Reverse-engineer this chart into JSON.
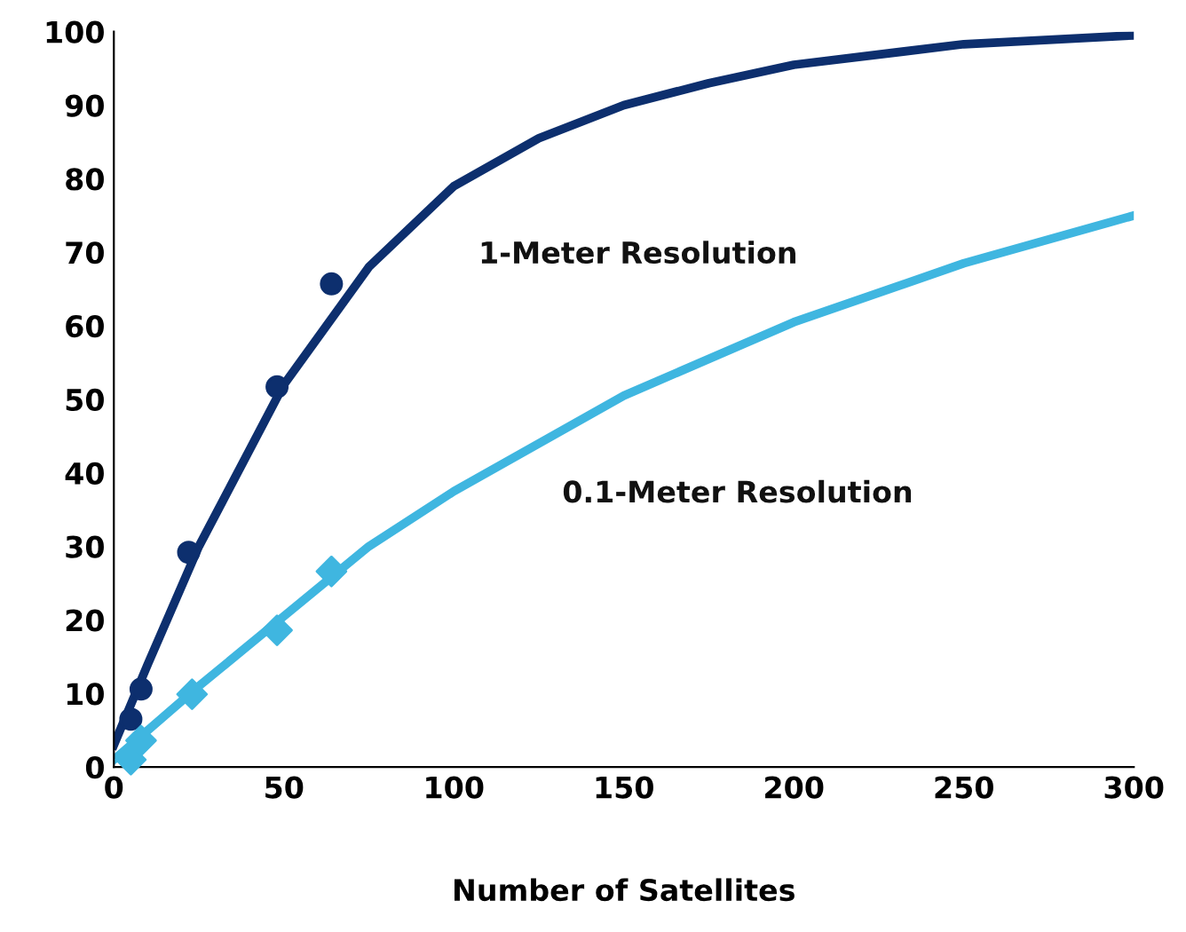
{
  "chart_data": {
    "type": "line",
    "xlabel": "Number of Satellites",
    "xlim": [
      0,
      300
    ],
    "ylim": [
      0,
      100
    ],
    "xticks": [
      0,
      50,
      100,
      150,
      200,
      250,
      300
    ],
    "yticks": [
      0,
      10,
      20,
      30,
      40,
      50,
      60,
      70,
      80,
      90,
      100
    ],
    "grid": false,
    "line_style": "solid",
    "series": [
      {
        "name": "1-Meter Resolution",
        "color": "#0d2f6e",
        "marker": "none",
        "x": [
          0,
          10,
          25,
          50,
          75,
          100,
          125,
          150,
          175,
          200,
          250,
          300
        ],
        "values": [
          3,
          14,
          30,
          52,
          68,
          79,
          85.5,
          90,
          93,
          95.5,
          98.3,
          99.5
        ]
      },
      {
        "name": "0.1-Meter Resolution",
        "color": "#3fb6e0",
        "marker": "none",
        "x": [
          0,
          10,
          25,
          50,
          75,
          100,
          150,
          200,
          250,
          300
        ],
        "values": [
          1,
          5,
          11,
          20.5,
          30,
          37.5,
          50.5,
          60.5,
          68.5,
          75
        ]
      },
      {
        "color": "#0d2f6e",
        "type": "scatter",
        "marker": "circle",
        "x": [
          5,
          8,
          22,
          48,
          64
        ],
        "values": [
          6.5,
          10.6,
          29.2,
          51.7,
          65.7
        ]
      },
      {
        "color": "#3fb6e0",
        "type": "scatter",
        "marker": "diamond",
        "x": [
          5,
          8,
          23,
          48,
          64
        ],
        "values": [
          1,
          3.6,
          9.9,
          18.6,
          26.6
        ]
      }
    ]
  }
}
